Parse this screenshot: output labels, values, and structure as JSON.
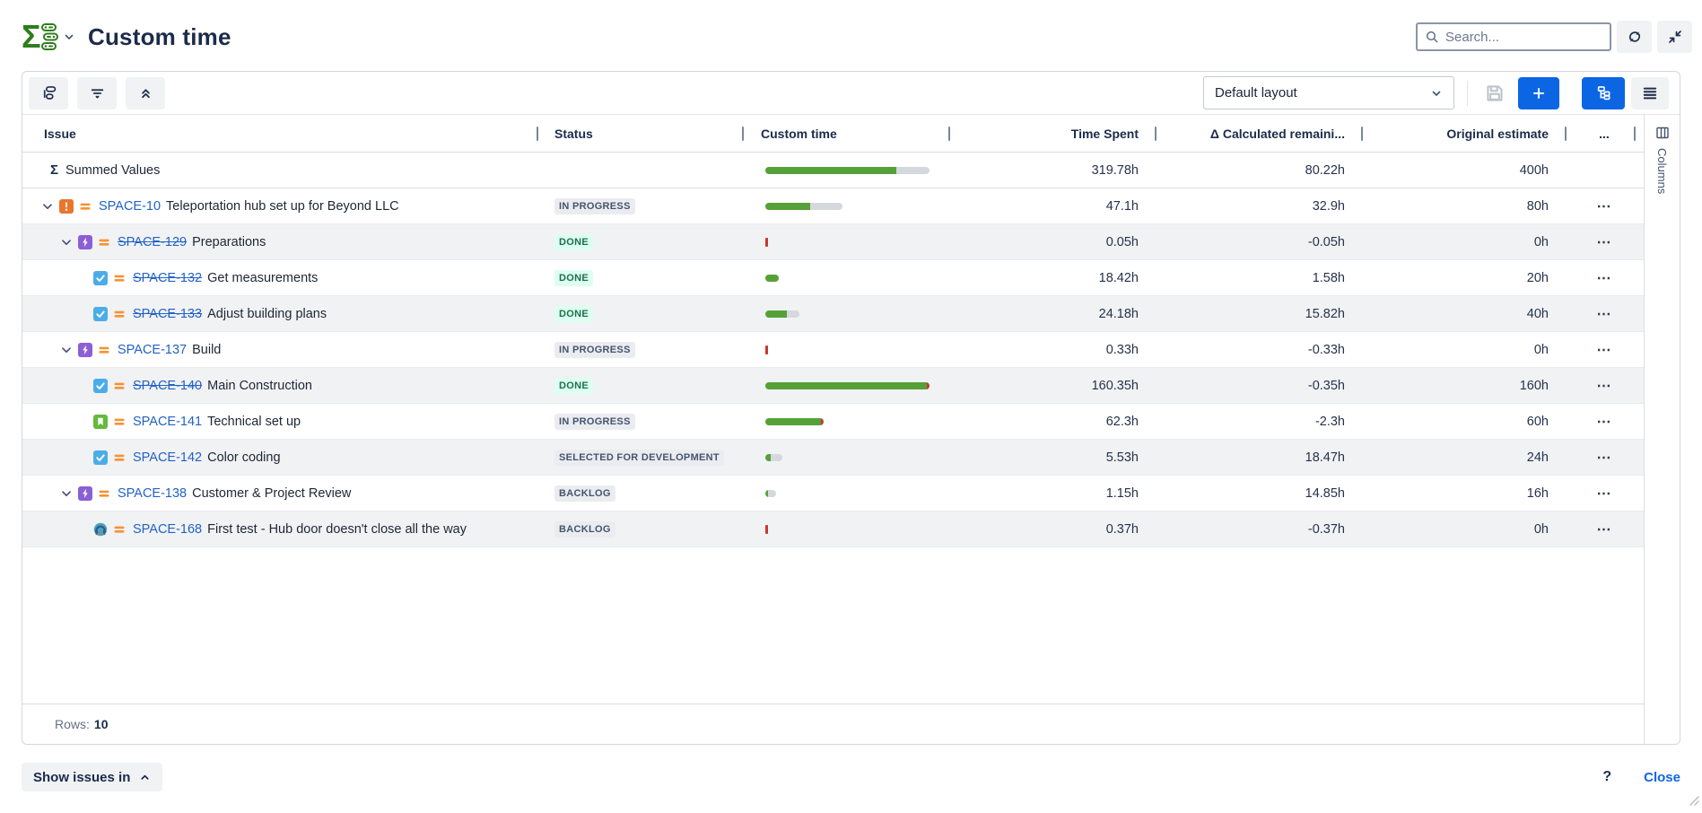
{
  "header": {
    "title": "Custom time",
    "search_placeholder": "Search...",
    "icons": {
      "logo": "sigma-structure-logo",
      "search": "magnifier",
      "refresh": "sync-arrows",
      "collapse": "collapse-inward-arrows"
    }
  },
  "toolbar": {
    "layout_select": "Default layout",
    "icons": {
      "left": [
        "group-rows",
        "filter-lines",
        "collapse-all-double-chevron-up"
      ],
      "right": [
        "save-floppy-disabled",
        "plus",
        "hierarchy-view-active",
        "list-view"
      ]
    }
  },
  "table": {
    "columns": [
      {
        "label": "Issue"
      },
      {
        "label": "Status"
      },
      {
        "label": "Custom time"
      },
      {
        "label": "Time Spent"
      },
      {
        "label": "Δ Calculated remaini..."
      },
      {
        "label": "Original estimate"
      },
      {
        "label": "..."
      }
    ],
    "summary": {
      "icon_glyph": "Σ",
      "label": "Summed Values",
      "bar": {
        "green": 146,
        "track": 37
      },
      "spent": "319.78h",
      "delta": "80.22h",
      "estimate": "400h"
    },
    "rows": [
      {
        "depth": 0,
        "chevron": true,
        "type": "exclamation",
        "key": "SPACE-10",
        "strike": false,
        "summary": "Teleportation hub set up for Beyond LLC",
        "status": {
          "label": "IN PROGRESS",
          "variant": "gray"
        },
        "bar": {
          "green": 50,
          "track": 36
        },
        "spent": "47.1h",
        "delta": "32.9h",
        "estimate": "80h",
        "stripe": false
      },
      {
        "depth": 1,
        "chevron": true,
        "type": "epic",
        "key": "SPACE-129",
        "strike": true,
        "summary": "Preparations",
        "status": {
          "label": "DONE",
          "variant": "green"
        },
        "bar": {
          "red_tick": true
        },
        "spent": "0.05h",
        "delta": "-0.05h",
        "estimate": "0h",
        "stripe": true
      },
      {
        "depth": 2,
        "chevron": false,
        "type": "task",
        "key": "SPACE-132",
        "strike": true,
        "summary": "Get measurements",
        "status": {
          "label": "DONE",
          "variant": "green"
        },
        "bar": {
          "green": 15
        },
        "spent": "18.42h",
        "delta": "1.58h",
        "estimate": "20h",
        "stripe": false
      },
      {
        "depth": 2,
        "chevron": false,
        "type": "task",
        "key": "SPACE-133",
        "strike": true,
        "summary": "Adjust building plans",
        "status": {
          "label": "DONE",
          "variant": "green"
        },
        "bar": {
          "green": 24,
          "track": 14
        },
        "spent": "24.18h",
        "delta": "15.82h",
        "estimate": "40h",
        "stripe": true
      },
      {
        "depth": 1,
        "chevron": true,
        "type": "epic",
        "key": "SPACE-137",
        "strike": false,
        "summary": "Build",
        "status": {
          "label": "IN PROGRESS",
          "variant": "gray"
        },
        "bar": {
          "red_tick": true
        },
        "spent": "0.33h",
        "delta": "-0.33h",
        "estimate": "0h",
        "stripe": false
      },
      {
        "depth": 2,
        "chevron": false,
        "type": "task",
        "key": "SPACE-140",
        "strike": true,
        "summary": "Main Construction",
        "status": {
          "label": "DONE",
          "variant": "green"
        },
        "bar": {
          "green": 180,
          "red_tip": true
        },
        "spent": "160.35h",
        "delta": "-0.35h",
        "estimate": "160h",
        "stripe": true
      },
      {
        "depth": 2,
        "chevron": false,
        "type": "story",
        "key": "SPACE-141",
        "strike": false,
        "summary": "Technical set up",
        "status": {
          "label": "IN PROGRESS",
          "variant": "gray"
        },
        "bar": {
          "green": 62,
          "red_tip": true
        },
        "spent": "62.3h",
        "delta": "-2.3h",
        "estimate": "60h",
        "stripe": false
      },
      {
        "depth": 2,
        "chevron": false,
        "type": "task",
        "key": "SPACE-142",
        "strike": false,
        "summary": "Color coding",
        "status": {
          "label": "SELECTED FOR DEVELOPMENT",
          "variant": "gray"
        },
        "bar": {
          "green": 6,
          "track": 13
        },
        "spent": "5.53h",
        "delta": "18.47h",
        "estimate": "24h",
        "stripe": true
      },
      {
        "depth": 1,
        "chevron": true,
        "type": "epic",
        "key": "SPACE-138",
        "strike": false,
        "summary": "Customer & Project Review",
        "status": {
          "label": "BACKLOG",
          "variant": "gray"
        },
        "bar": {
          "green": 3,
          "track": 9
        },
        "spent": "1.15h",
        "delta": "14.85h",
        "estimate": "16h",
        "stripe": false
      },
      {
        "depth": 2,
        "chevron": false,
        "type": "headphones",
        "key": "SPACE-168",
        "strike": false,
        "summary": "First test - Hub door doesn't close all the way",
        "status": {
          "label": "BACKLOG",
          "variant": "gray"
        },
        "bar": {
          "red_tick": true
        },
        "spent": "0.37h",
        "delta": "-0.37h",
        "estimate": "0h",
        "stripe": true
      }
    ],
    "row_actions_glyph": "⋯"
  },
  "footer": {
    "rows_label": "Rows:",
    "rows_value": "10"
  },
  "columns_panel": {
    "label": "Columns",
    "icon": "table-columns"
  },
  "bottom": {
    "show_issues_label": "Show issues in",
    "help_glyph": "?",
    "close_label": "Close"
  },
  "colors": {
    "accent_blue": "#0c66e4",
    "link_blue": "#2262c6",
    "bar_green": "#55a138",
    "bar_red": "#c9372c",
    "bar_track": "#d5d8dd",
    "badge_gray_bg": "#ebecf0",
    "badge_gray_text": "#44546f",
    "badge_green_bg": "#dcfff1",
    "badge_green_text": "#216e4e",
    "logo_green": "#2e7d1e",
    "priority_orange": "#f79232",
    "stripe": "#f1f2f4"
  }
}
